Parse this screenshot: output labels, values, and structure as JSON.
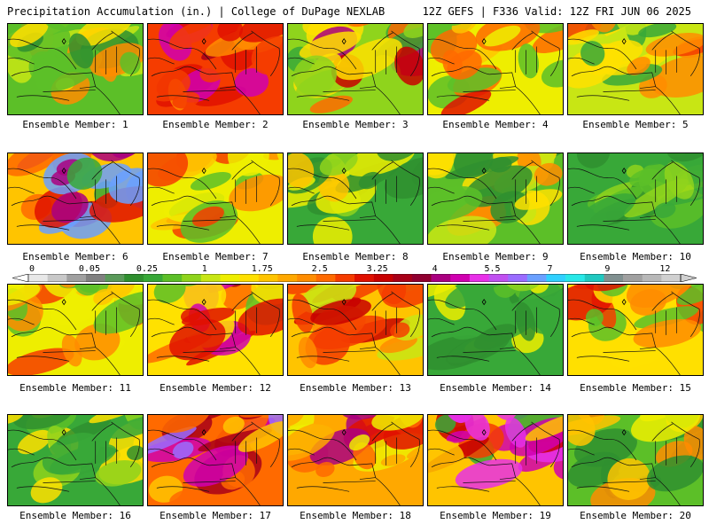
{
  "header": {
    "left": "Precipitation Accumulation (in.) | College of DuPage NEXLAB",
    "right": "12Z GEFS | F336 Valid: 12Z FRI JUN 06 2025"
  },
  "colorbar": {
    "tick_labels": [
      "0",
      "0.05",
      "0.25",
      "1",
      "1.75",
      "2.5",
      "3.25",
      "4",
      "5.5",
      "7",
      "9",
      "12"
    ],
    "tick_index": [
      0,
      3,
      6,
      9,
      12,
      15,
      18,
      21,
      24,
      27,
      30,
      33
    ],
    "colors": [
      "#e8e8e8",
      "#c8c8c8",
      "#a0a0a0",
      "#808080",
      "#5a9a5a",
      "#2f8f2f",
      "#38a838",
      "#5cbf28",
      "#8fd41c",
      "#c8e614",
      "#eeee00",
      "#ffe000",
      "#ffc400",
      "#ffa800",
      "#ff8c00",
      "#ff6a00",
      "#f53c00",
      "#e01000",
      "#c80000",
      "#a80018",
      "#900030",
      "#aa0080",
      "#d000b0",
      "#e830e8",
      "#c050f0",
      "#9a6cff",
      "#6aa0ff",
      "#30d0ff",
      "#28e8e8",
      "#20c8c0",
      "#809090",
      "#a0a0a0",
      "#b8b8b8",
      "#d0d0d0"
    ]
  },
  "panels": [
    {
      "label": "Ensemble Member: 1",
      "palette": [
        "#2f8f2f",
        "#5cbf28",
        "#c8e614",
        "#ffe000",
        "#ff8c00"
      ]
    },
    {
      "label": "Ensemble Member: 2",
      "palette": [
        "#ff8c00",
        "#f53c00",
        "#e01000",
        "#a80018",
        "#d000b0"
      ]
    },
    {
      "label": "Ensemble Member: 3",
      "palette": [
        "#38a838",
        "#8fd41c",
        "#ffe000",
        "#ff6a00",
        "#c80000",
        "#aa0080"
      ]
    },
    {
      "label": "Ensemble Member: 4",
      "palette": [
        "#5cbf28",
        "#eeee00",
        "#ffc400",
        "#ff6a00",
        "#e01000"
      ]
    },
    {
      "label": "Ensemble Member: 5",
      "palette": [
        "#38a838",
        "#c8e614",
        "#ffe000",
        "#ff8c00",
        "#f53c00"
      ]
    },
    {
      "label": "Ensemble Member: 6",
      "palette": [
        "#38a838",
        "#ffc400",
        "#ff6a00",
        "#e01000",
        "#aa0080",
        "#6aa0ff"
      ]
    },
    {
      "label": "Ensemble Member: 7",
      "palette": [
        "#5cbf28",
        "#eeee00",
        "#ffc400",
        "#ff8c00",
        "#f53c00"
      ]
    },
    {
      "label": "Ensemble Member: 8",
      "palette": [
        "#2f8f2f",
        "#38a838",
        "#8fd41c",
        "#eeee00",
        "#ffc400"
      ]
    },
    {
      "label": "Ensemble Member: 9",
      "palette": [
        "#2f8f2f",
        "#5cbf28",
        "#c8e614",
        "#ffe000",
        "#ff8c00"
      ]
    },
    {
      "label": "Ensemble Member: 10",
      "palette": [
        "#2f8f2f",
        "#38a838",
        "#5cbf28",
        "#8fd41c",
        "#eeee00"
      ]
    },
    {
      "label": "Ensemble Member: 11",
      "palette": [
        "#5cbf28",
        "#eeee00",
        "#ffc400",
        "#ff8c00",
        "#f53c00"
      ]
    },
    {
      "label": "Ensemble Member: 12",
      "palette": [
        "#5cbf28",
        "#ffe000",
        "#ff6a00",
        "#e01000",
        "#a80018",
        "#d000b0"
      ]
    },
    {
      "label": "Ensemble Member: 13",
      "palette": [
        "#c8e614",
        "#ffc400",
        "#ff8c00",
        "#f53c00",
        "#c80000"
      ]
    },
    {
      "label": "Ensemble Member: 14",
      "palette": [
        "#2f8f2f",
        "#38a838",
        "#5cbf28",
        "#8fd41c",
        "#eeee00"
      ]
    },
    {
      "label": "Ensemble Member: 15",
      "palette": [
        "#5cbf28",
        "#ffe000",
        "#ff8c00",
        "#f53c00",
        "#e01000"
      ]
    },
    {
      "label": "Ensemble Member: 16",
      "palette": [
        "#2f8f2f",
        "#38a838",
        "#5cbf28",
        "#8fd41c",
        "#ffe000"
      ]
    },
    {
      "label": "Ensemble Member: 17",
      "palette": [
        "#ffc400",
        "#ff6a00",
        "#e01000",
        "#a80018",
        "#d000b0",
        "#9a6cff"
      ]
    },
    {
      "label": "Ensemble Member: 18",
      "palette": [
        "#eeee00",
        "#ffa800",
        "#ff6a00",
        "#e01000",
        "#aa0080"
      ]
    },
    {
      "label": "Ensemble Member: 19",
      "palette": [
        "#38a838",
        "#ffc400",
        "#f53c00",
        "#c80000",
        "#d000b0",
        "#e830e8"
      ]
    },
    {
      "label": "Ensemble Member: 20",
      "palette": [
        "#2f8f2f",
        "#5cbf28",
        "#eeee00",
        "#ffc400",
        "#ff8c00"
      ]
    }
  ]
}
